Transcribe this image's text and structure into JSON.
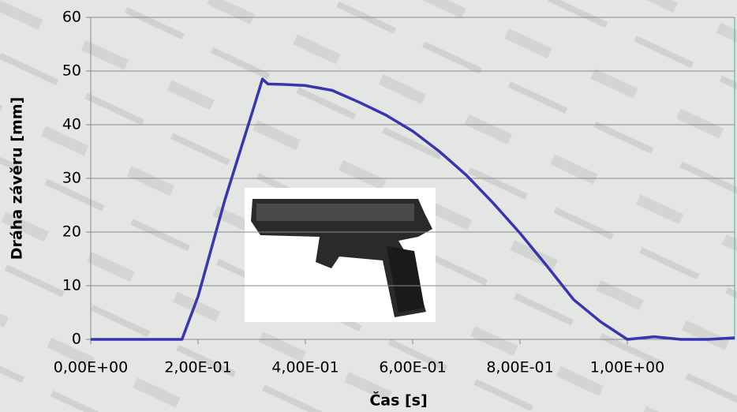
{
  "chart_data": {
    "type": "line",
    "x_label": "Čas [s]",
    "y_label": "Dráha závěru [mm]",
    "x": [
      0,
      0.17,
      0.2,
      0.25,
      0.3,
      0.32,
      0.33,
      0.36,
      0.4,
      0.45,
      0.5,
      0.55,
      0.6,
      0.65,
      0.7,
      0.75,
      0.8,
      0.85,
      0.9,
      0.95,
      1.0,
      1.05,
      1.1,
      1.15,
      1.2
    ],
    "series": [
      {
        "color": "#3636b0",
        "values": [
          0,
          0,
          8,
          26,
          42,
          48.5,
          47.6,
          47.5,
          47.3,
          46.4,
          44.2,
          41.8,
          38.8,
          35.0,
          30.6,
          25.4,
          19.8,
          13.7,
          7.4,
          3.3,
          0,
          0.5,
          0,
          0,
          0.3
        ]
      }
    ],
    "xlim": [
      0,
      1.2
    ],
    "xticks": [
      {
        "value": 0,
        "label": "0,00E+00"
      },
      {
        "value": 0.2,
        "label": "2,00E-01"
      },
      {
        "value": 0.4,
        "label": "4,00E-01"
      },
      {
        "value": 0.6,
        "label": "6,00E-01"
      },
      {
        "value": 0.8,
        "label": "8,00E-01"
      },
      {
        "value": 1.0,
        "label": "1,00E+00"
      }
    ],
    "ylim": [
      0,
      60
    ],
    "yticks": [
      0,
      10,
      20,
      30,
      40,
      50,
      60
    ],
    "grid": true
  }
}
